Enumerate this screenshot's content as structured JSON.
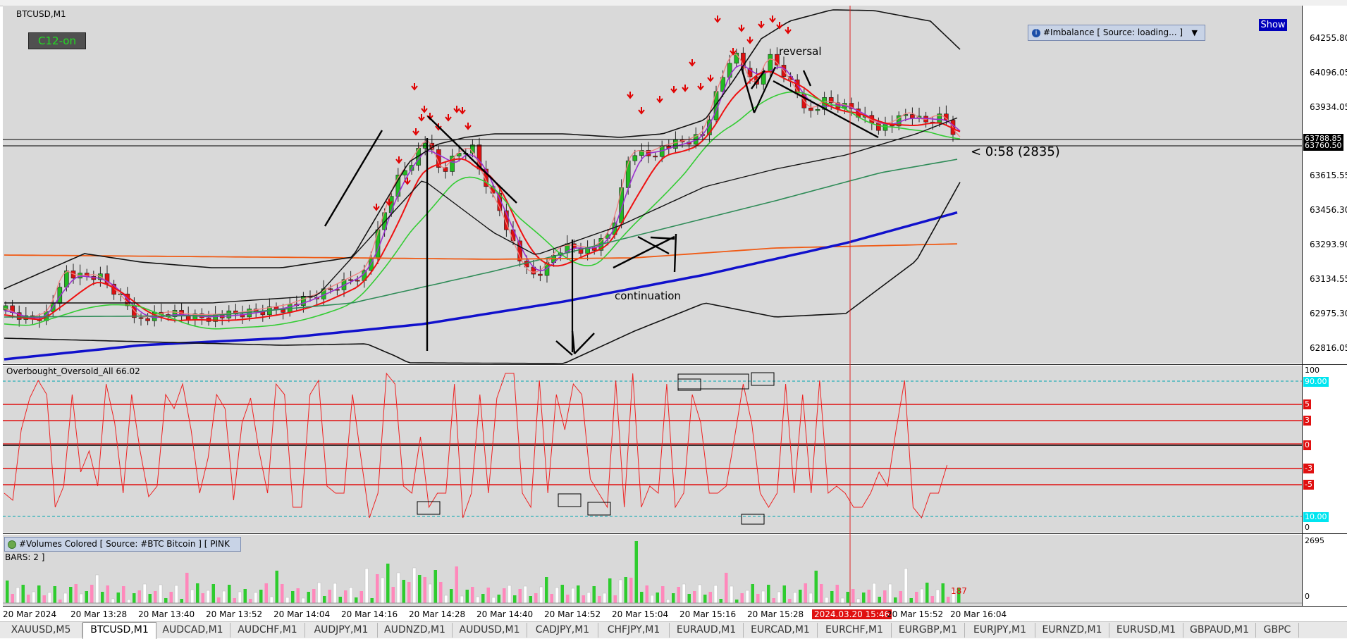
{
  "chart_title": "BTCUSD,M1",
  "c12_button": "C12-on",
  "show_button": "Show",
  "imbalance_panel": {
    "label": "#Imbalance [ Source: loading... ]",
    "dropdown": "▼"
  },
  "annotations": {
    "reversal": "reversal",
    "continuation": "continuation",
    "countdown": "< 0:58 (2835)"
  },
  "price_axis": [
    "64255.80",
    "64096.05",
    "63934.05",
    "63615.55",
    "63456.30",
    "63293.90",
    "63134.55",
    "62975.30",
    "62816.05"
  ],
  "price_tags": {
    "upper": "63788.85",
    "current": "63760.50"
  },
  "oscillator": {
    "title": "Overbought_Oversold_All 66.02",
    "axis": {
      "top": "100",
      "bottom": "0"
    },
    "level_tags": {
      "upper": "90.00",
      "lower": "10.00",
      "plus5": "5",
      "plus3": "3",
      "zero": "0",
      "minus3": "-3",
      "minus5": "-5"
    }
  },
  "volumes": {
    "label": "#Volumes Colored [ Source: #BTC Bitcoin ]  [ PINK BARS: 2 ]",
    "axis_top": "2695",
    "axis_bottom": "0",
    "last_value": "187"
  },
  "time_axis": [
    "20 Mar 2024",
    "20 Mar 13:28",
    "20 Mar 13:40",
    "20 Mar 13:52",
    "20 Mar 14:04",
    "20 Mar 14:16",
    "20 Mar 14:28",
    "20 Mar 14:40",
    "20 Mar 14:52",
    "20 Mar 15:04",
    "20 Mar 15:16",
    "20 Mar 15:28",
    "2024.03.20 15:46",
    "20 Mar 15:52",
    "20 Mar 16:04"
  ],
  "tabs": [
    "XAUUSD,M5",
    "BTCUSD,M1",
    "AUDCAD,M1",
    "AUDCHF,M1",
    "AUDJPY,M1",
    "AUDNZD,M1",
    "AUDUSD,M1",
    "CADJPY,M1",
    "CHFJPY,M1",
    "EURAUD,M1",
    "EURCAD,M1",
    "EURCHF,M1",
    "EURGBP,M1",
    "EURJPY,M1",
    "EURNZD,M1",
    "EURUSD,M1",
    "GBPAUD,M1",
    "GBPC"
  ],
  "active_tab": "BTCUSD,M1",
  "colors": {
    "pane_bg": "#d9d9d9",
    "bull": "#22bb22",
    "bear": "#dd1111",
    "fast_ma": "#ee1111",
    "slow_ma": "#1111cc",
    "bands": "#111111",
    "osc_line": "#ee2222",
    "crosshair": "#dd2222",
    "level_cyan": "#00e5f0"
  }
}
